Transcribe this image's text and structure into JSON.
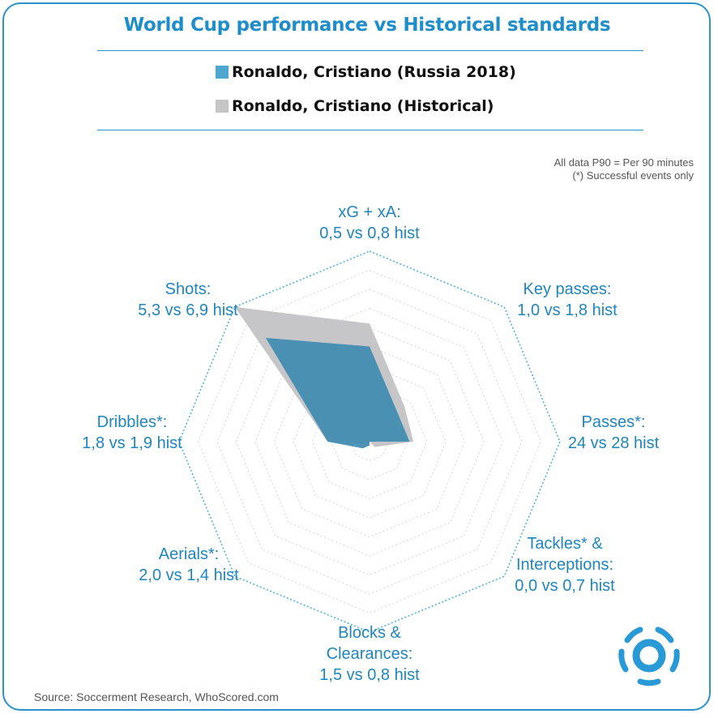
{
  "title": "World Cup performance vs Historical standards",
  "legend": [
    {
      "label": "Ronaldo, Cristiano (Russia 2018)",
      "color": "#4fa7cf"
    },
    {
      "label": "Ronaldo, Cristiano (Historical)",
      "color": "#c6c6c8"
    }
  ],
  "note": {
    "line1": "All data P90 = Per 90 minutes",
    "line2": "(*) Successful events only"
  },
  "source": "Source: Soccerment Research, WhoScored.com",
  "colors": {
    "accent": "#1f8ec8",
    "series_current": "#3f8cb0",
    "series_historical": "#c6c6c8",
    "grid": "#cfd4d8",
    "outline": "#4fb3dd"
  },
  "chart_data": {
    "type": "radar",
    "title": "World Cup performance vs Historical standards",
    "axes": [
      {
        "name": "xG + xA:",
        "label_lines": [
          "xG + xA:",
          "0,5 vs 0,8 hist"
        ],
        "current": 0.5,
        "historical": 0.8
      },
      {
        "name": "Key passes:",
        "label_lines": [
          "Key passes:",
          "1,0 vs 1,8 hist"
        ],
        "current": 1.0,
        "historical": 1.8
      },
      {
        "name": "Passes*:",
        "label_lines": [
          "Passes*:",
          "24 vs 28 hist"
        ],
        "current": 24,
        "historical": 28
      },
      {
        "name": "Tackles* & Interceptions:",
        "label_lines": [
          "Tackles* &",
          "Interceptions:",
          "0,0 vs 0,7 hist"
        ],
        "current": 0.0,
        "historical": 0.7
      },
      {
        "name": "Blocks & Clearances:",
        "label_lines": [
          "Blocks &",
          "Clearances:",
          "1,5 vs 0,8 hist"
        ],
        "current": 1.5,
        "historical": 0.8
      },
      {
        "name": "Aerials*:",
        "label_lines": [
          "Aerials*:",
          "2,0 vs 1,4 hist"
        ],
        "current": 2.0,
        "historical": 1.4
      },
      {
        "name": "Dribbles*:",
        "label_lines": [
          "Dribbles*:",
          "1,8 vs 1,9 hist"
        ],
        "current": 1.8,
        "historical": 1.9
      },
      {
        "name": "Shots:",
        "label_lines": [
          "Shots:",
          "5,3 vs 6,9 hist"
        ],
        "current": 5.3,
        "historical": 6.9
      }
    ],
    "radial_fraction": {
      "current": [
        0.5,
        0.21,
        0.21,
        0.0,
        0.02,
        0.05,
        0.22,
        0.77
      ],
      "historical": [
        0.62,
        0.26,
        0.23,
        0.04,
        0.0,
        0.02,
        0.22,
        1.0
      ]
    },
    "series": [
      {
        "name": "Ronaldo, Cristiano (Russia 2018)"
      },
      {
        "name": "Ronaldo, Cristiano (Historical)"
      }
    ]
  }
}
